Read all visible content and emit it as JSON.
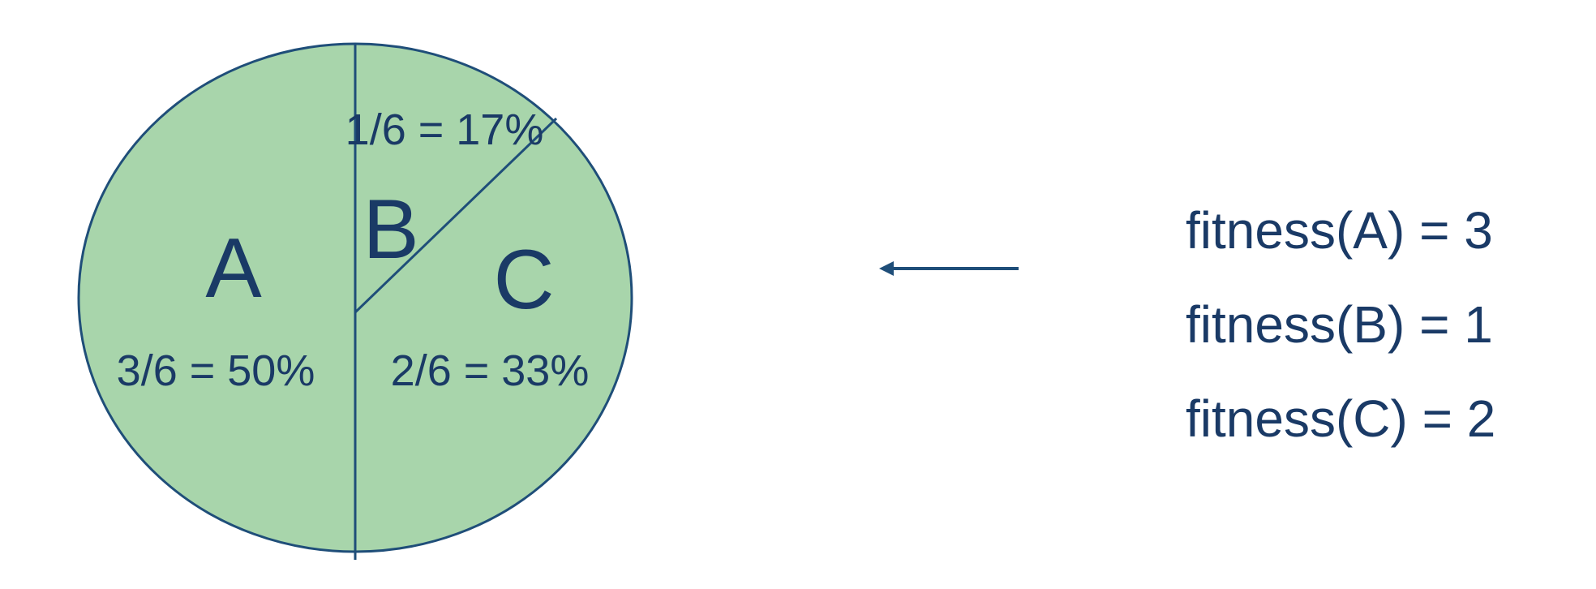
{
  "colors": {
    "fill": "#a8d5ab",
    "stroke": "#1f4e79",
    "text": "#1a3a66",
    "arrow": "#1f4e79"
  },
  "wheel": {
    "segments": [
      {
        "id": "A",
        "label": "A",
        "fraction": "3/6 = 50%",
        "share": 0.5
      },
      {
        "id": "B",
        "label": "B",
        "fraction": "1/6 = 17%",
        "share": 0.1667
      },
      {
        "id": "C",
        "label": "C",
        "fraction": "2/6 = 33%",
        "share": 0.3333
      }
    ]
  },
  "fitness": [
    {
      "text": "fitness(A) = 3"
    },
    {
      "text": "fitness(B) = 1"
    },
    {
      "text": "fitness(C) = 2"
    }
  ]
}
